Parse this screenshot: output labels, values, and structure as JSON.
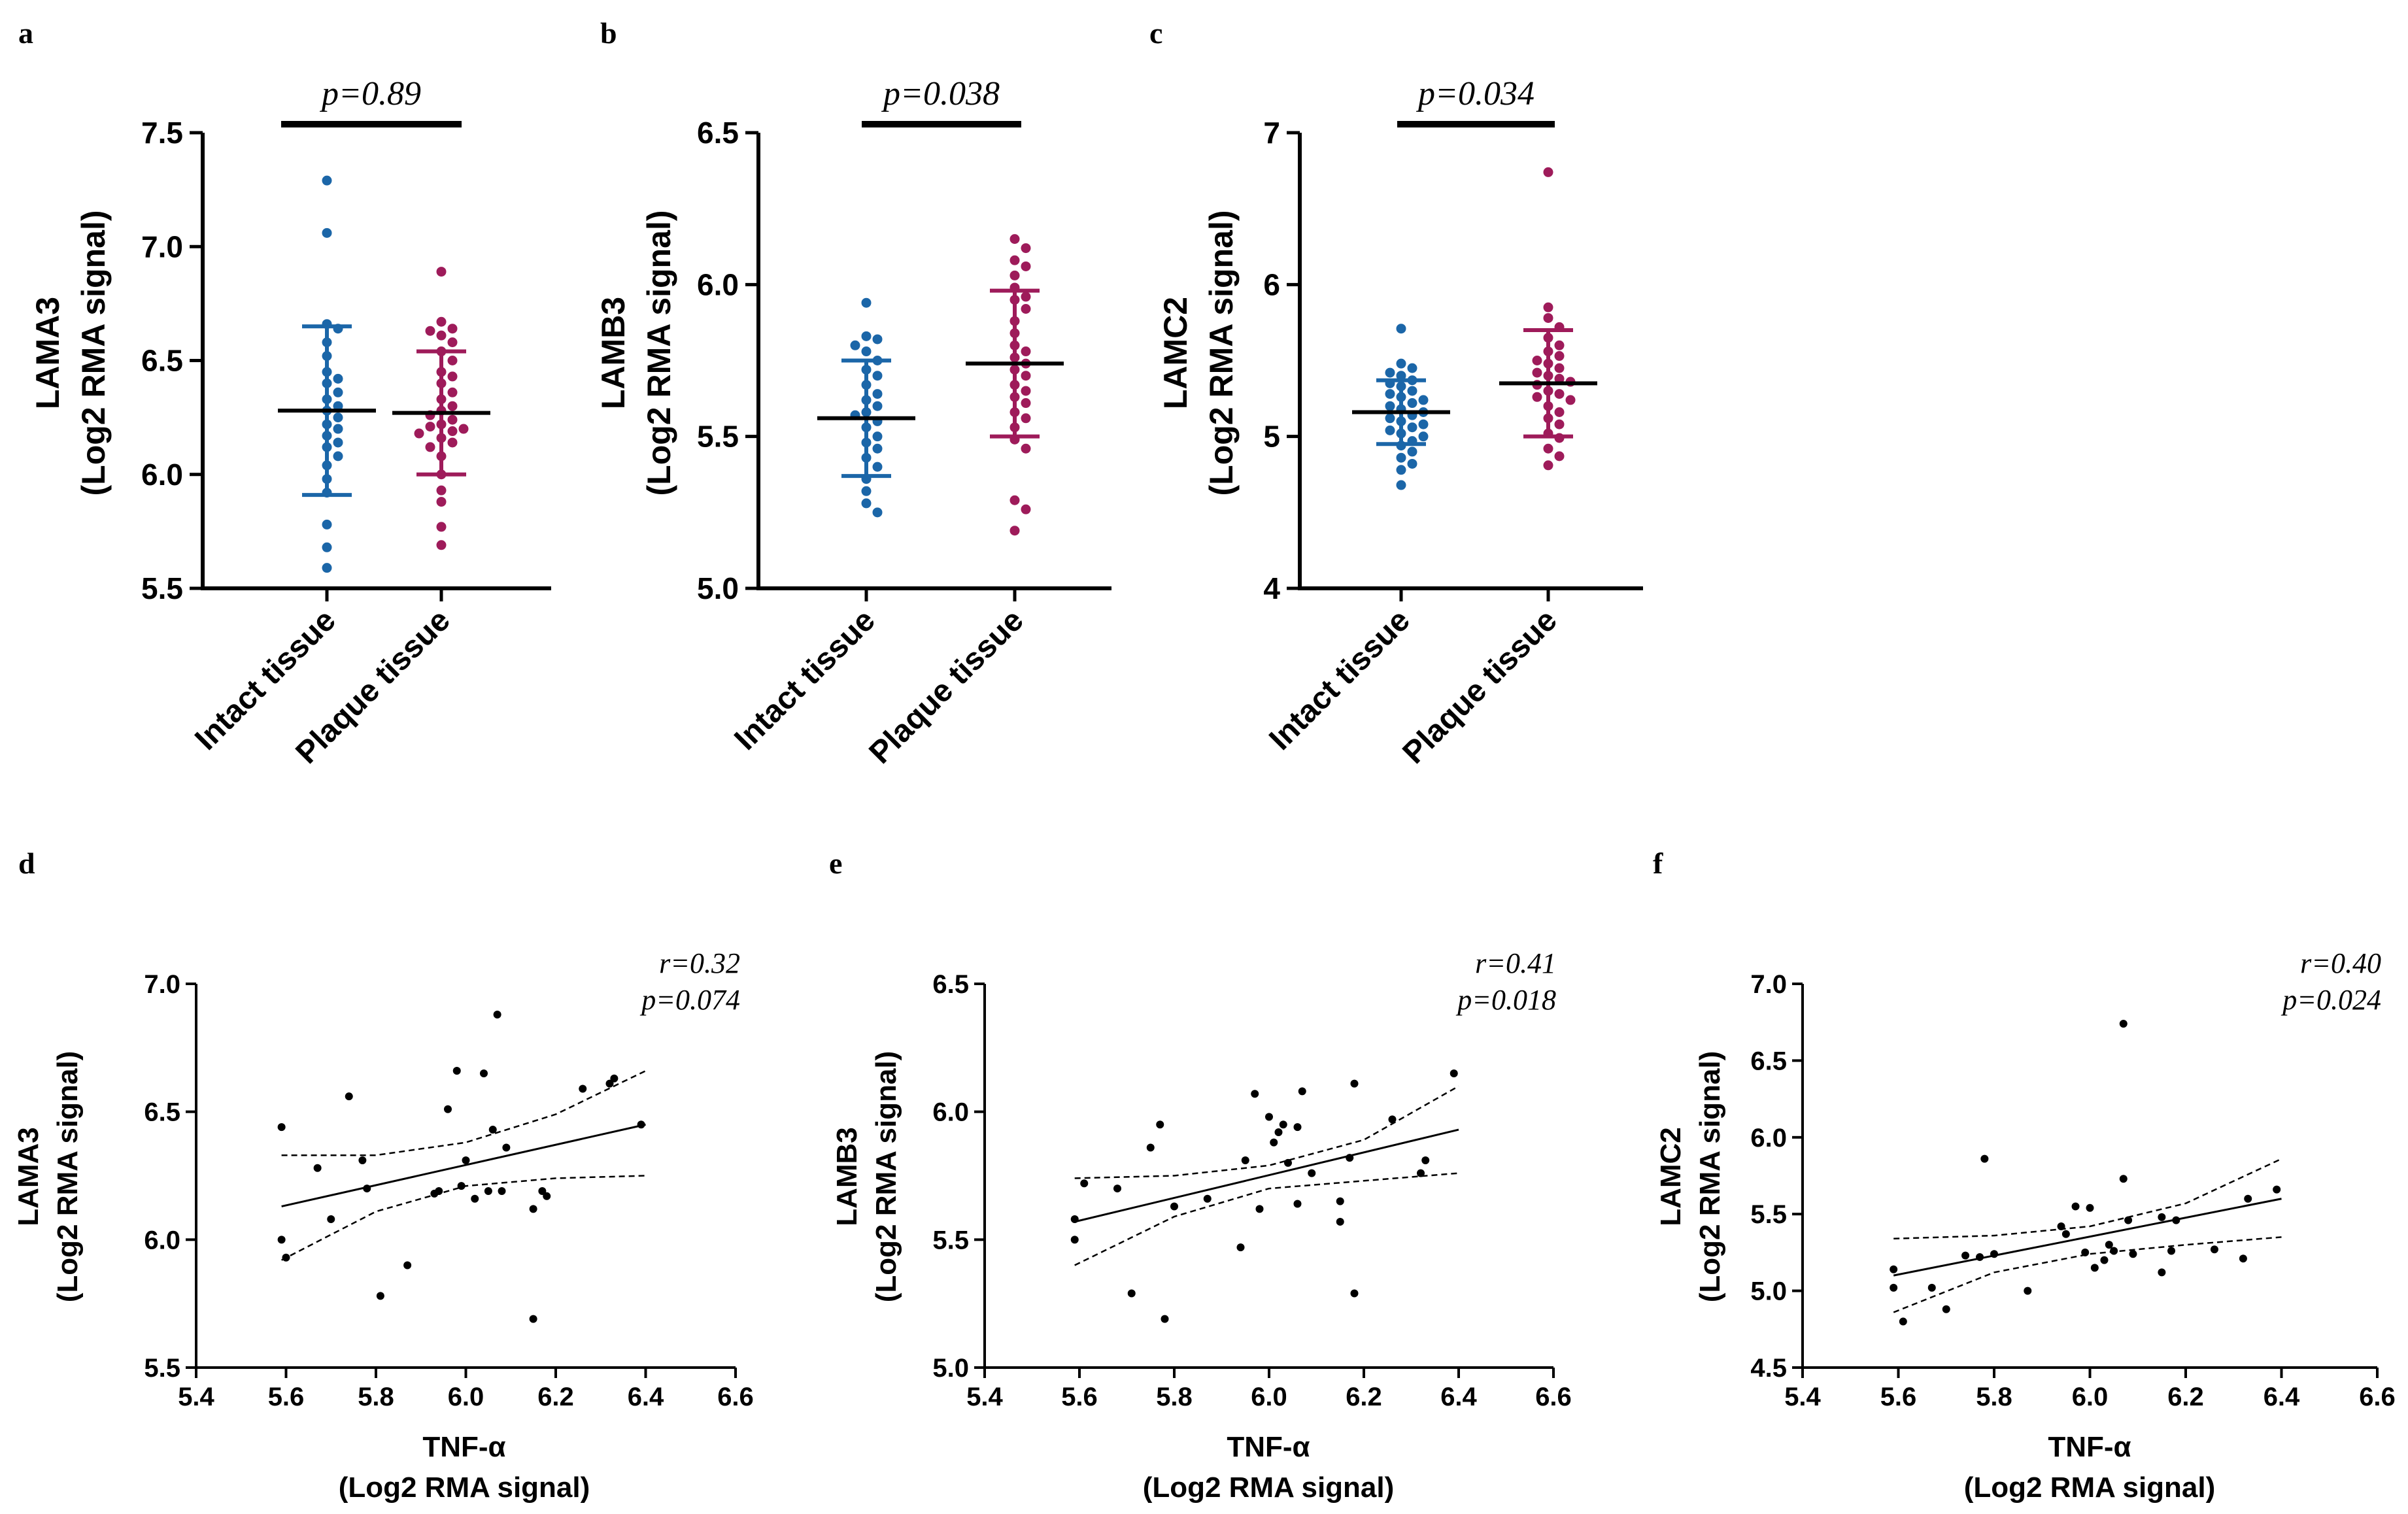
{
  "colors": {
    "intact": "#1b66a8",
    "plaque": "#9e1b5a",
    "black": "#000000"
  },
  "chart_data": [
    {
      "panel": "a",
      "type": "scatter",
      "ylabel_line1": "LAMA3",
      "ylabel_line2": "(Log2 RMA signal)",
      "ylim": [
        5.5,
        7.5
      ],
      "yticks": [
        "5.5",
        "6.0",
        "6.5",
        "7.0",
        "7.5"
      ],
      "categories": [
        "Intact tissue",
        "Plaque tissue"
      ],
      "pvalue": "p=0.89",
      "groups": [
        {
          "name": "Intact tissue",
          "mean": 6.28,
          "sd": 0.37,
          "values": [
            7.29,
            7.06,
            6.66,
            6.64,
            6.58,
            6.52,
            6.45,
            6.42,
            6.4,
            6.36,
            6.33,
            6.3,
            6.28,
            6.25,
            6.22,
            6.2,
            6.17,
            6.14,
            6.12,
            6.08,
            6.04,
            5.98,
            5.92,
            5.78,
            5.68,
            5.59
          ]
        },
        {
          "name": "Plaque tissue",
          "mean": 6.27,
          "sd": 0.27,
          "values": [
            6.89,
            6.67,
            6.64,
            6.63,
            6.61,
            6.58,
            6.54,
            6.5,
            6.45,
            6.43,
            6.4,
            6.36,
            6.33,
            6.3,
            6.28,
            6.26,
            6.24,
            6.22,
            6.21,
            6.2,
            6.19,
            6.18,
            6.16,
            6.14,
            6.12,
            6.08,
            6.0,
            5.93,
            5.88,
            5.77,
            5.69
          ]
        }
      ]
    },
    {
      "panel": "b",
      "type": "scatter",
      "ylabel_line1": "LAMB3",
      "ylabel_line2": "(Log2 RMA signal)",
      "ylim": [
        5.0,
        6.5
      ],
      "yticks": [
        "5.0",
        "5.5",
        "6.0",
        "6.5"
      ],
      "categories": [
        "Intact tissue",
        "Plaque tissue"
      ],
      "pvalue": "p=0.038",
      "groups": [
        {
          "name": "Intact tissue",
          "mean": 5.56,
          "sd": 0.19,
          "values": [
            5.94,
            5.83,
            5.82,
            5.8,
            5.78,
            5.75,
            5.72,
            5.7,
            5.67,
            5.64,
            5.62,
            5.6,
            5.58,
            5.57,
            5.55,
            5.53,
            5.5,
            5.48,
            5.46,
            5.43,
            5.4,
            5.36,
            5.32,
            5.28,
            5.25
          ]
        },
        {
          "name": "Plaque tissue",
          "mean": 5.74,
          "sd": 0.24,
          "values": [
            6.15,
            6.12,
            6.08,
            6.06,
            6.03,
            5.99,
            5.96,
            5.95,
            5.92,
            5.88,
            5.84,
            5.8,
            5.78,
            5.76,
            5.74,
            5.72,
            5.7,
            5.67,
            5.65,
            5.63,
            5.61,
            5.58,
            5.56,
            5.53,
            5.49,
            5.46,
            5.29,
            5.26,
            5.19
          ]
        }
      ]
    },
    {
      "panel": "c",
      "type": "scatter",
      "ylabel_line1": "LAMC2",
      "ylabel_line2": "(Log2 RMA signal)",
      "ylim": [
        4,
        7
      ],
      "yticks": [
        "4",
        "5",
        "6",
        "7"
      ],
      "categories": [
        "Intact tissue",
        "Plaque tissue"
      ],
      "pvalue": "p=0.034",
      "groups": [
        {
          "name": "Intact tissue",
          "mean": 5.16,
          "sd": 0.21,
          "values": [
            5.71,
            5.48,
            5.45,
            5.42,
            5.4,
            5.37,
            5.35,
            5.33,
            5.3,
            5.28,
            5.26,
            5.24,
            5.22,
            5.2,
            5.18,
            5.16,
            5.14,
            5.12,
            5.1,
            5.08,
            5.06,
            5.04,
            5.02,
            5.0,
            4.97,
            4.94,
            4.9,
            4.86,
            4.82,
            4.78,
            4.68
          ]
        },
        {
          "name": "Plaque tissue",
          "mean": 5.35,
          "sd": 0.35,
          "values": [
            6.74,
            5.85,
            5.78,
            5.72,
            5.65,
            5.6,
            5.56,
            5.53,
            5.5,
            5.48,
            5.45,
            5.42,
            5.4,
            5.38,
            5.36,
            5.34,
            5.3,
            5.28,
            5.26,
            5.24,
            5.2,
            5.16,
            5.12,
            5.08,
            5.02,
            4.99,
            4.92,
            4.87,
            4.81
          ]
        }
      ]
    },
    {
      "panel": "d",
      "type": "scatter",
      "xlabel_line1": "TNF-α",
      "xlabel_line2": "(Log2 RMA signal)",
      "ylabel_line1": "LAMA3",
      "ylabel_line2": "(Log2 RMA signal)",
      "xlim": [
        5.4,
        6.6
      ],
      "xticks": [
        "5.4",
        "5.6",
        "5.8",
        "6.0",
        "6.2",
        "6.4",
        "6.6"
      ],
      "ylim": [
        5.5,
        7.0
      ],
      "yticks": [
        "5.5",
        "6.0",
        "6.5",
        "7.0"
      ],
      "r_text": "r=0.32",
      "p_text": "p=0.074",
      "fit": {
        "x0": 5.59,
        "y0": 6.13,
        "x1": 6.4,
        "y1": 6.45
      },
      "ci_upper": [
        [
          5.59,
          6.33
        ],
        [
          5.8,
          6.33
        ],
        [
          6.0,
          6.38
        ],
        [
          6.2,
          6.49
        ],
        [
          6.4,
          6.66
        ]
      ],
      "ci_lower": [
        [
          5.59,
          5.92
        ],
        [
          5.8,
          6.11
        ],
        [
          6.0,
          6.21
        ],
        [
          6.2,
          6.24
        ],
        [
          6.4,
          6.25
        ]
      ],
      "points": [
        [
          5.59,
          6.44
        ],
        [
          5.59,
          6.0
        ],
        [
          5.6,
          5.93
        ],
        [
          5.67,
          6.28
        ],
        [
          5.7,
          6.08
        ],
        [
          5.74,
          6.56
        ],
        [
          5.77,
          6.31
        ],
        [
          5.78,
          6.2
        ],
        [
          5.81,
          5.78
        ],
        [
          5.87,
          5.9
        ],
        [
          5.93,
          6.18
        ],
        [
          5.94,
          6.19
        ],
        [
          5.96,
          6.51
        ],
        [
          5.98,
          6.66
        ],
        [
          5.99,
          6.21
        ],
        [
          6.0,
          6.31
        ],
        [
          6.02,
          6.16
        ],
        [
          6.04,
          6.65
        ],
        [
          6.05,
          6.19
        ],
        [
          6.06,
          6.43
        ],
        [
          6.07,
          6.88
        ],
        [
          6.08,
          6.19
        ],
        [
          6.09,
          6.36
        ],
        [
          6.15,
          6.12
        ],
        [
          6.15,
          5.69
        ],
        [
          6.17,
          6.19
        ],
        [
          6.18,
          6.17
        ],
        [
          6.26,
          6.59
        ],
        [
          6.32,
          6.61
        ],
        [
          6.33,
          6.63
        ],
        [
          6.39,
          6.45
        ]
      ]
    },
    {
      "panel": "e",
      "type": "scatter",
      "xlabel_line1": "TNF-α",
      "xlabel_line2": "(Log2 RMA signal)",
      "ylabel_line1": "LAMB3",
      "ylabel_line2": "(Log2 RMA signal)",
      "xlim": [
        5.4,
        6.6
      ],
      "xticks": [
        "5.4",
        "5.6",
        "5.8",
        "6.0",
        "6.2",
        "6.4",
        "6.6"
      ],
      "ylim": [
        5.0,
        6.5
      ],
      "yticks": [
        "5.0",
        "5.5",
        "6.0",
        "6.5"
      ],
      "r_text": "r=0.41",
      "p_text": "p=0.018",
      "fit": {
        "x0": 5.59,
        "y0": 5.57,
        "x1": 6.4,
        "y1": 5.93
      },
      "ci_upper": [
        [
          5.59,
          5.74
        ],
        [
          5.8,
          5.75
        ],
        [
          6.0,
          5.79
        ],
        [
          6.2,
          5.89
        ],
        [
          6.4,
          6.1
        ]
      ],
      "ci_lower": [
        [
          5.59,
          5.4
        ],
        [
          5.8,
          5.59
        ],
        [
          6.0,
          5.7
        ],
        [
          6.2,
          5.73
        ],
        [
          6.4,
          5.76
        ]
      ],
      "points": [
        [
          5.59,
          5.58
        ],
        [
          5.59,
          5.5
        ],
        [
          5.61,
          5.72
        ],
        [
          5.68,
          5.7
        ],
        [
          5.71,
          5.29
        ],
        [
          5.75,
          5.86
        ],
        [
          5.77,
          5.95
        ],
        [
          5.78,
          5.19
        ],
        [
          5.8,
          5.63
        ],
        [
          5.87,
          5.66
        ],
        [
          5.94,
          5.47
        ],
        [
          5.95,
          5.81
        ],
        [
          5.97,
          6.07
        ],
        [
          5.98,
          5.62
        ],
        [
          6.0,
          5.98
        ],
        [
          6.01,
          5.88
        ],
        [
          6.02,
          5.92
        ],
        [
          6.03,
          5.95
        ],
        [
          6.04,
          5.8
        ],
        [
          6.06,
          5.64
        ],
        [
          6.06,
          5.94
        ],
        [
          6.07,
          6.08
        ],
        [
          6.09,
          5.76
        ],
        [
          6.15,
          5.65
        ],
        [
          6.15,
          5.57
        ],
        [
          6.17,
          5.82
        ],
        [
          6.18,
          6.11
        ],
        [
          6.18,
          5.29
        ],
        [
          6.26,
          5.97
        ],
        [
          6.32,
          5.76
        ],
        [
          6.33,
          5.81
        ],
        [
          6.39,
          6.15
        ]
      ]
    },
    {
      "panel": "f",
      "type": "scatter",
      "xlabel_line1": "TNF-α",
      "xlabel_line2": "(Log2 RMA signal)",
      "ylabel_line1": "LAMC2",
      "ylabel_line2": "(Log2 RMA signal)",
      "xlim": [
        5.4,
        6.6
      ],
      "xticks": [
        "5.4",
        "5.6",
        "5.8",
        "6.0",
        "6.2",
        "6.4",
        "6.6"
      ],
      "ylim": [
        4.5,
        7.0
      ],
      "yticks": [
        "4.5",
        "5.0",
        "5.5",
        "6.0",
        "6.5",
        "7.0"
      ],
      "r_text": "r=0.40",
      "p_text": "p=0.024",
      "fit": {
        "x0": 5.59,
        "y0": 5.1,
        "x1": 6.4,
        "y1": 5.6
      },
      "ci_upper": [
        [
          5.59,
          5.34
        ],
        [
          5.8,
          5.36
        ],
        [
          6.0,
          5.42
        ],
        [
          6.2,
          5.57
        ],
        [
          6.4,
          5.86
        ]
      ],
      "ci_lower": [
        [
          5.59,
          4.86
        ],
        [
          5.8,
          5.12
        ],
        [
          6.0,
          5.24
        ],
        [
          6.2,
          5.3
        ],
        [
          6.4,
          5.35
        ]
      ],
      "points": [
        [
          5.59,
          5.14
        ],
        [
          5.59,
          5.02
        ],
        [
          5.61,
          4.8
        ],
        [
          5.67,
          5.02
        ],
        [
          5.7,
          4.88
        ],
        [
          5.74,
          5.23
        ],
        [
          5.77,
          5.22
        ],
        [
          5.78,
          5.86
        ],
        [
          5.8,
          5.24
        ],
        [
          5.87,
          5.0
        ],
        [
          5.94,
          5.42
        ],
        [
          5.95,
          5.37
        ],
        [
          5.97,
          5.55
        ],
        [
          5.99,
          5.25
        ],
        [
          6.0,
          5.54
        ],
        [
          6.01,
          5.15
        ],
        [
          6.03,
          5.2
        ],
        [
          6.04,
          5.3
        ],
        [
          6.05,
          5.26
        ],
        [
          6.07,
          6.74
        ],
        [
          6.07,
          5.73
        ],
        [
          6.08,
          5.46
        ],
        [
          6.09,
          5.24
        ],
        [
          6.15,
          5.12
        ],
        [
          6.15,
          5.48
        ],
        [
          6.17,
          5.26
        ],
        [
          6.18,
          5.46
        ],
        [
          6.26,
          5.27
        ],
        [
          6.32,
          5.21
        ],
        [
          6.33,
          5.6
        ],
        [
          6.39,
          5.66
        ]
      ]
    }
  ]
}
